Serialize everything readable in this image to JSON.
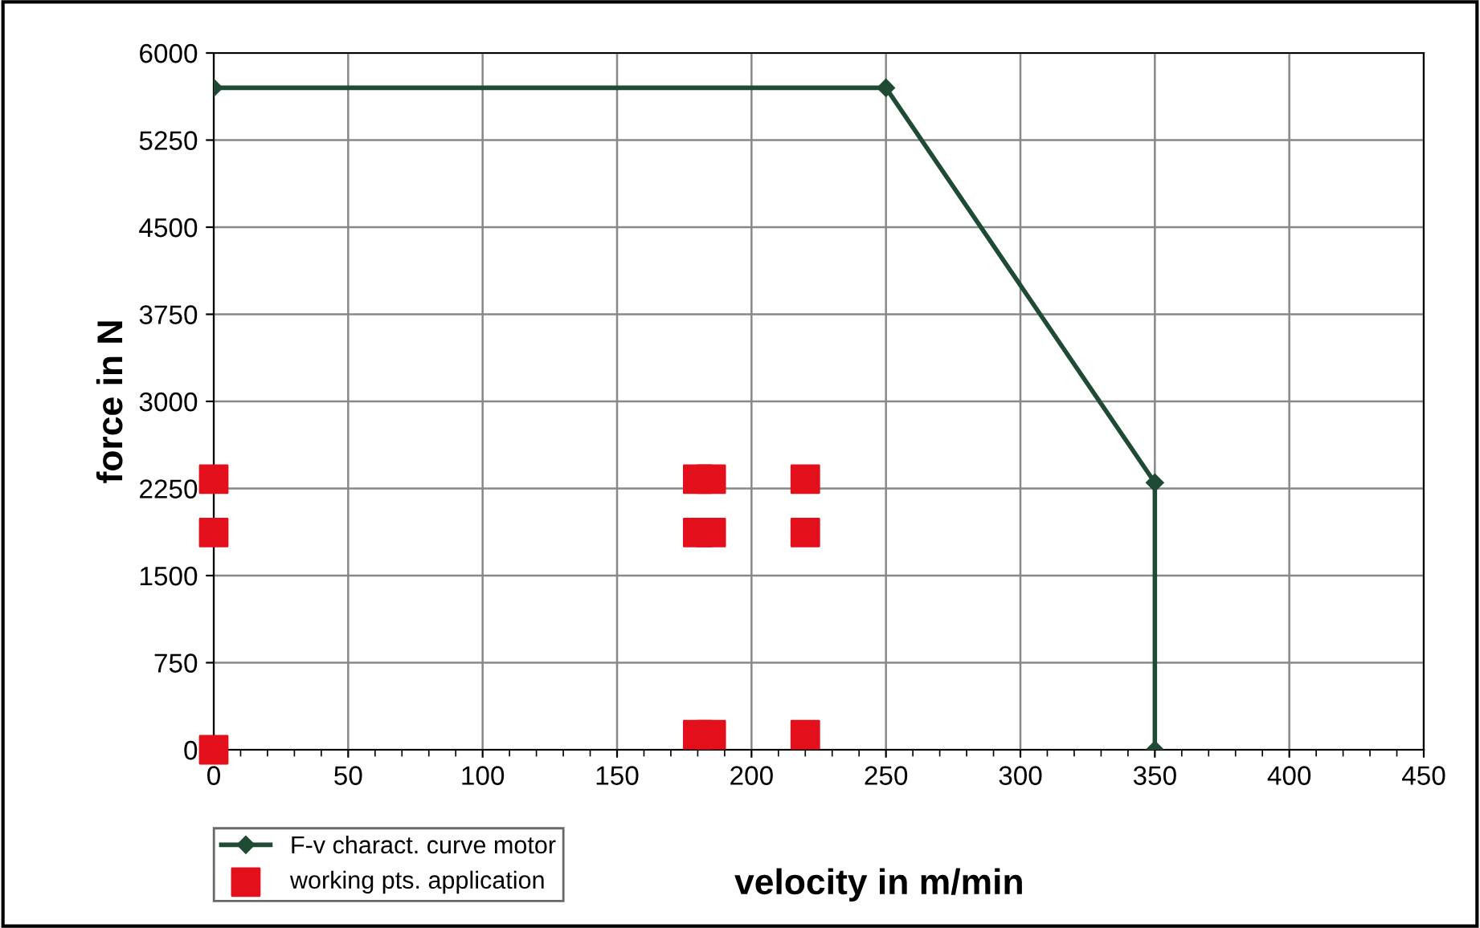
{
  "chart_data": {
    "type": "line",
    "xlabel": "velocity in m/min",
    "ylabel": "force in N",
    "xlim": [
      0,
      450
    ],
    "xticks": [
      0,
      50,
      100,
      150,
      200,
      250,
      300,
      350,
      400,
      450
    ],
    "ylim": [
      0,
      6000
    ],
    "yticks": [
      0,
      750,
      1500,
      2250,
      3000,
      3750,
      4500,
      5250,
      6000
    ],
    "grid": true,
    "legend": "bottom left",
    "series": [
      {
        "name": "F-v charact. curve motor",
        "color": "#1f4a33",
        "marker": "diamond",
        "line_style": "solid",
        "x": [
          0,
          250,
          350,
          350
        ],
        "values": [
          5700,
          5700,
          2300,
          0
        ]
      },
      {
        "name": "working pts. application",
        "type": "scatter",
        "color": "#e3101c",
        "marker": "square",
        "x": [
          0,
          0,
          0,
          180,
          180,
          180,
          185,
          185,
          185,
          220,
          220,
          220
        ],
        "values": [
          2330,
          1870,
          0,
          2330,
          1870,
          130,
          2330,
          1870,
          130,
          2330,
          1870,
          130
        ]
      }
    ]
  }
}
